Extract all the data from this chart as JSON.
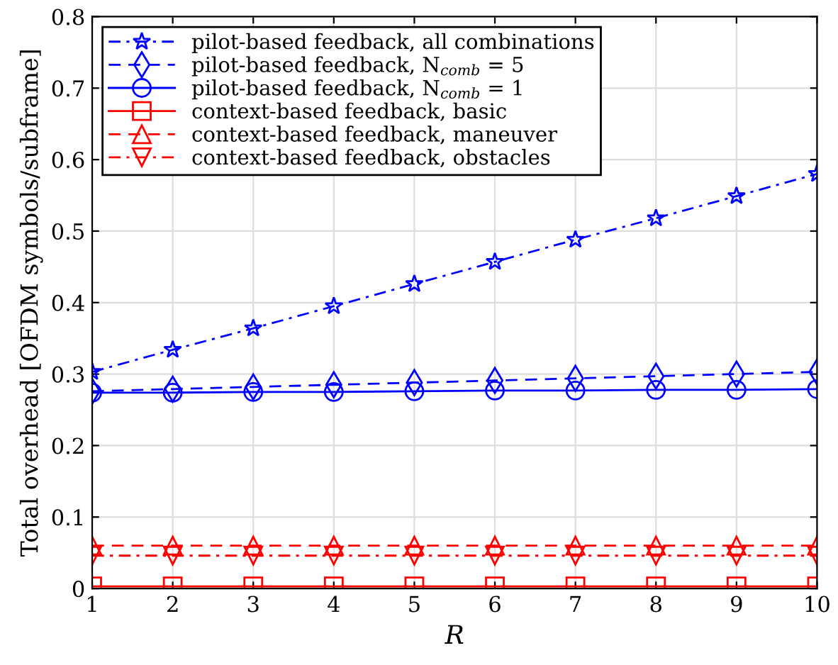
{
  "chart_data": {
    "type": "line",
    "xlabel": "R",
    "ylabel": "Total overhead [OFDM symbols/subframe]",
    "x": [
      1,
      2,
      3,
      4,
      5,
      6,
      7,
      8,
      9,
      10
    ],
    "xlim": [
      1,
      10
    ],
    "xticks": [
      1,
      2,
      3,
      4,
      5,
      6,
      7,
      8,
      9,
      10
    ],
    "ylim": [
      0,
      0.8
    ],
    "yticks": [
      0,
      0.1,
      0.2,
      0.3,
      0.4,
      0.5,
      0.6,
      0.7,
      0.8
    ],
    "grid": true,
    "legend": "top left",
    "series": [
      {
        "name": "pilot-based feedback, all combinations",
        "color": "#0000ff",
        "marker": "star",
        "line_style": "dashdot",
        "values": [
          0.303,
          0.334,
          0.364,
          0.395,
          0.426,
          0.457,
          0.488,
          0.518,
          0.549,
          0.58
        ]
      },
      {
        "name": "pilot-based feedback, N$_{comb}$ = 5",
        "color": "#0000ff",
        "marker": "diamond",
        "line_style": "dashed",
        "values": [
          0.276,
          0.279,
          0.282,
          0.285,
          0.288,
          0.291,
          0.294,
          0.297,
          0.3,
          0.303
        ]
      },
      {
        "name": "pilot-based feedback, N$_{comb}$ = 1",
        "color": "#0000ff",
        "marker": "circle",
        "line_style": "solid",
        "values": [
          0.274,
          0.274,
          0.275,
          0.275,
          0.276,
          0.277,
          0.277,
          0.278,
          0.278,
          0.279
        ]
      },
      {
        "name": "context-based feedback, basic",
        "color": "#ff0000",
        "marker": "square",
        "line_style": "solid",
        "values": [
          0.003,
          0.003,
          0.003,
          0.003,
          0.003,
          0.003,
          0.003,
          0.003,
          0.003,
          0.003
        ]
      },
      {
        "name": "context-based feedback, maneuver",
        "color": "#ff0000",
        "marker": "triangle",
        "line_style": "dashed",
        "values": [
          0.06,
          0.06,
          0.06,
          0.06,
          0.06,
          0.06,
          0.06,
          0.06,
          0.06,
          0.06
        ]
      },
      {
        "name": "context-based feedback, obstacles",
        "color": "#ff0000",
        "marker": "triangle_down",
        "line_style": "dashdot",
        "values": [
          0.046,
          0.046,
          0.046,
          0.046,
          0.046,
          0.046,
          0.046,
          0.046,
          0.046,
          0.046
        ]
      }
    ]
  }
}
